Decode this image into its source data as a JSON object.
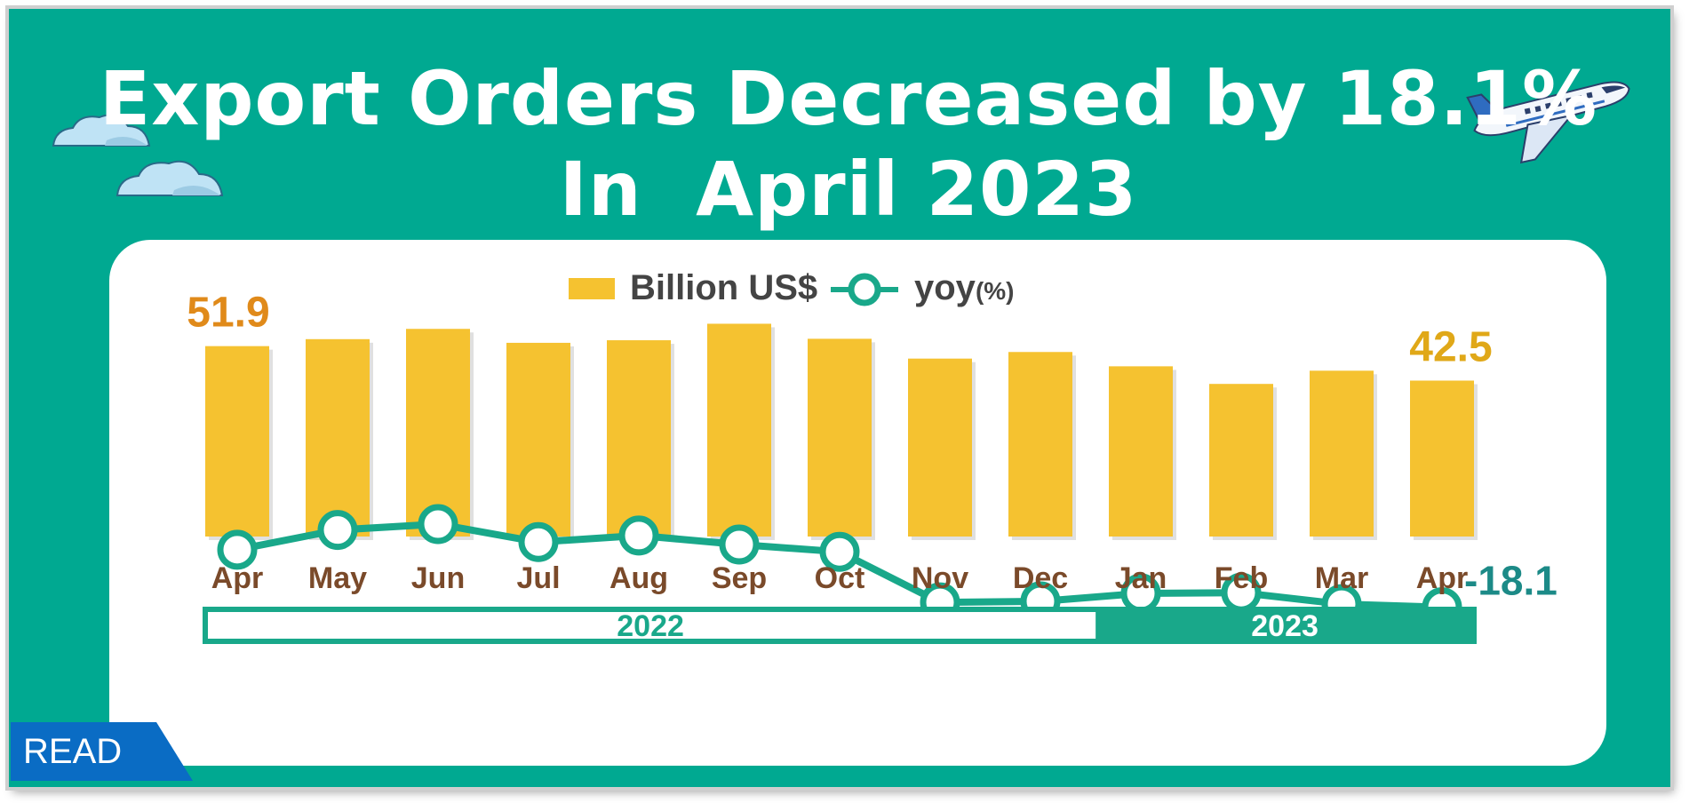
{
  "title": {
    "line1": "Export Orders Decreased by 18.1%",
    "line2": "In  April 2023"
  },
  "badge": {
    "label": "READ"
  },
  "decorations": {
    "clouds": "cloud-icon",
    "plane": "airplane-icon"
  },
  "colors": {
    "background": "#00a991",
    "bar": "#f5c230",
    "line": "#19a88a",
    "month_label": "#7a4a2a",
    "first_value": "#e08a1a",
    "last_value": "#e0a818",
    "yoy_value": "#1c8a87",
    "badge": "#0a6cc4"
  },
  "chart_data": {
    "type": "bar",
    "legend": {
      "bar_label": "Billion US$",
      "line_label": "yoy",
      "line_unit": "(%)",
      "position": "top-center"
    },
    "categories": [
      "Apr",
      "May",
      "Jun",
      "Jul",
      "Aug",
      "Sep",
      "Oct",
      "Nov",
      "Dec",
      "Jan",
      "Feb",
      "Mar",
      "Apr"
    ],
    "series": [
      {
        "name": "Billion US$",
        "type": "bar",
        "values": [
          51.9,
          53.8,
          56.6,
          52.8,
          53.5,
          58.0,
          53.9,
          48.5,
          50.3,
          46.4,
          41.6,
          45.2,
          42.5
        ]
      },
      {
        "name": "yoy",
        "type": "line",
        "values": [
          -1.5,
          4.2,
          5.9,
          0.7,
          2.6,
          0.0,
          -2.1,
          -16.7,
          -16.4,
          -14.1,
          -13.9,
          -17.2,
          -18.1
        ]
      }
    ],
    "data_labels": {
      "bar_first": "51.9",
      "bar_last": "42.5",
      "line_last": "-18.1"
    },
    "year_groups": [
      {
        "label": "2022",
        "start": 0,
        "end": 8
      },
      {
        "label": "2023",
        "start": 9,
        "end": 12
      }
    ],
    "grid": false
  }
}
